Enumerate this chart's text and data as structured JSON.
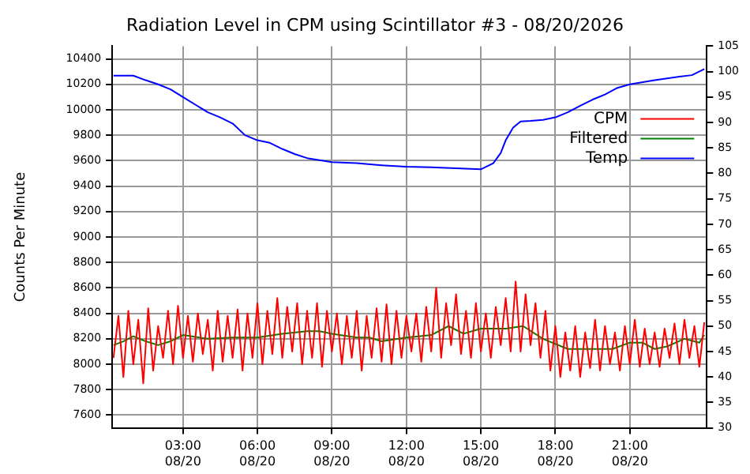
{
  "chart_data": {
    "type": "line",
    "title": "Radiation Level in CPM using Scintillator #3 - 08/20/2026",
    "ylabel": "Counts Per Minute",
    "xlim": [
      "2026-08-20T00:09",
      "2026-08-21T00:06"
    ],
    "ylim": [
      7500,
      10500
    ],
    "y2lim": [
      30,
      105
    ],
    "xticks": [
      {
        "value": "2026-08-20T03:00",
        "label": "03:00\n08/20"
      },
      {
        "value": "2026-08-20T06:00",
        "label": "06:00\n08/20"
      },
      {
        "value": "2026-08-20T09:00",
        "label": "09:00\n08/20"
      },
      {
        "value": "2026-08-20T12:00",
        "label": "12:00\n08/20"
      },
      {
        "value": "2026-08-20T15:00",
        "label": "15:00\n08/20"
      },
      {
        "value": "2026-08-20T18:00",
        "label": "18:00\n08/20"
      },
      {
        "value": "2026-08-20T21:00",
        "label": "21:00\n08/20"
      }
    ],
    "yticks": [
      7600,
      7800,
      8000,
      8200,
      8400,
      8600,
      8800,
      9000,
      9200,
      9400,
      9600,
      9800,
      10000,
      10200,
      10400
    ],
    "y2ticks": [
      30,
      35,
      40,
      45,
      50,
      55,
      60,
      65,
      70,
      75,
      80,
      85,
      90,
      95,
      100,
      105
    ],
    "grid": true,
    "legend": "top right",
    "marker": "none",
    "line_style": "solid",
    "series": [
      {
        "name": "CPM",
        "color": "#ff0000",
        "x": [
          "2026-08-20T00:12",
          "2026-08-20T00:24",
          "2026-08-20T00:36",
          "2026-08-20T00:48",
          "2026-08-20T01:00",
          "2026-08-20T01:12",
          "2026-08-20T01:24",
          "2026-08-20T01:36",
          "2026-08-20T01:48",
          "2026-08-20T02:00",
          "2026-08-20T02:12",
          "2026-08-20T02:24",
          "2026-08-20T02:36",
          "2026-08-20T02:48",
          "2026-08-20T03:00",
          "2026-08-20T03:12",
          "2026-08-20T03:24",
          "2026-08-20T03:36",
          "2026-08-20T03:48",
          "2026-08-20T04:00",
          "2026-08-20T04:12",
          "2026-08-20T04:24",
          "2026-08-20T04:36",
          "2026-08-20T04:48",
          "2026-08-20T05:00",
          "2026-08-20T05:12",
          "2026-08-20T05:24",
          "2026-08-20T05:36",
          "2026-08-20T05:48",
          "2026-08-20T06:00",
          "2026-08-20T06:12",
          "2026-08-20T06:24",
          "2026-08-20T06:36",
          "2026-08-20T06:48",
          "2026-08-20T07:00",
          "2026-08-20T07:12",
          "2026-08-20T07:24",
          "2026-08-20T07:36",
          "2026-08-20T07:48",
          "2026-08-20T08:00",
          "2026-08-20T08:12",
          "2026-08-20T08:24",
          "2026-08-20T08:36",
          "2026-08-20T08:48",
          "2026-08-20T09:00",
          "2026-08-20T09:12",
          "2026-08-20T09:24",
          "2026-08-20T09:36",
          "2026-08-20T09:48",
          "2026-08-20T10:00",
          "2026-08-20T10:12",
          "2026-08-20T10:24",
          "2026-08-20T10:36",
          "2026-08-20T10:48",
          "2026-08-20T11:00",
          "2026-08-20T11:12",
          "2026-08-20T11:24",
          "2026-08-20T11:36",
          "2026-08-20T11:48",
          "2026-08-20T12:00",
          "2026-08-20T12:12",
          "2026-08-20T12:24",
          "2026-08-20T12:36",
          "2026-08-20T12:48",
          "2026-08-20T13:00",
          "2026-08-20T13:12",
          "2026-08-20T13:24",
          "2026-08-20T13:36",
          "2026-08-20T13:48",
          "2026-08-20T14:00",
          "2026-08-20T14:12",
          "2026-08-20T14:24",
          "2026-08-20T14:36",
          "2026-08-20T14:48",
          "2026-08-20T15:00",
          "2026-08-20T15:12",
          "2026-08-20T15:24",
          "2026-08-20T15:36",
          "2026-08-20T15:48",
          "2026-08-20T16:00",
          "2026-08-20T16:12",
          "2026-08-20T16:24",
          "2026-08-20T16:36",
          "2026-08-20T16:48",
          "2026-08-20T17:00",
          "2026-08-20T17:12",
          "2026-08-20T17:24",
          "2026-08-20T17:36",
          "2026-08-20T17:48",
          "2026-08-20T18:00",
          "2026-08-20T18:12",
          "2026-08-20T18:24",
          "2026-08-20T18:36",
          "2026-08-20T18:48",
          "2026-08-20T19:00",
          "2026-08-20T19:12",
          "2026-08-20T19:24",
          "2026-08-20T19:36",
          "2026-08-20T19:48",
          "2026-08-20T20:00",
          "2026-08-20T20:12",
          "2026-08-20T20:24",
          "2026-08-20T20:36",
          "2026-08-20T20:48",
          "2026-08-20T21:00",
          "2026-08-20T21:12",
          "2026-08-20T21:24",
          "2026-08-20T21:36",
          "2026-08-20T21:48",
          "2026-08-20T22:00",
          "2026-08-20T22:12",
          "2026-08-20T22:24",
          "2026-08-20T22:36",
          "2026-08-20T22:48",
          "2026-08-20T23:00",
          "2026-08-20T23:12",
          "2026-08-20T23:24",
          "2026-08-20T23:36",
          "2026-08-20T23:48",
          "2026-08-21T00:00"
        ],
        "values": [
          8050,
          8380,
          7900,
          8420,
          8000,
          8350,
          7850,
          8440,
          7950,
          8300,
          8050,
          8420,
          8000,
          8460,
          8050,
          8380,
          8020,
          8400,
          8080,
          8350,
          7950,
          8420,
          8020,
          8380,
          8050,
          8430,
          7950,
          8400,
          8050,
          8480,
          8000,
          8420,
          8080,
          8520,
          8050,
          8450,
          8100,
          8480,
          8000,
          8420,
          8050,
          8480,
          7980,
          8420,
          8100,
          8400,
          8000,
          8380,
          8050,
          8420,
          7950,
          8380,
          8050,
          8440,
          8020,
          8470,
          8000,
          8420,
          8050,
          8380,
          8100,
          8400,
          8020,
          8450,
          8100,
          8600,
          8050,
          8480,
          8150,
          8550,
          8080,
          8420,
          8050,
          8480,
          8100,
          8400,
          8050,
          8450,
          8150,
          8520,
          8100,
          8650,
          8100,
          8550,
          8150,
          8480,
          8050,
          8420,
          7950,
          8300,
          7900,
          8250,
          7950,
          8300,
          7900,
          8250,
          7970,
          8350,
          7950,
          8300,
          8000,
          8250,
          7950,
          8300,
          8000,
          8350,
          7980,
          8280,
          8000,
          8250,
          7980,
          8280,
          8050,
          8320,
          8000,
          8350,
          8050,
          8300,
          7980,
          8330
        ]
      },
      {
        "name": "Filtered",
        "color": "#008000",
        "x": [
          "2026-08-20T00:12",
          "2026-08-20T00:36",
          "2026-08-20T01:00",
          "2026-08-20T01:30",
          "2026-08-20T02:00",
          "2026-08-20T02:30",
          "2026-08-20T03:00",
          "2026-08-20T04:00",
          "2026-08-20T05:00",
          "2026-08-20T06:00",
          "2026-08-20T07:00",
          "2026-08-20T08:00",
          "2026-08-20T08:30",
          "2026-08-20T09:00",
          "2026-08-20T10:00",
          "2026-08-20T10:30",
          "2026-08-20T11:00",
          "2026-08-20T12:00",
          "2026-08-20T12:30",
          "2026-08-20T13:00",
          "2026-08-20T13:42",
          "2026-08-20T14:18",
          "2026-08-20T15:00",
          "2026-08-20T16:00",
          "2026-08-20T16:42",
          "2026-08-20T17:30",
          "2026-08-20T18:30",
          "2026-08-20T19:30",
          "2026-08-20T20:18",
          "2026-08-20T21:00",
          "2026-08-20T21:30",
          "2026-08-20T22:00",
          "2026-08-20T22:30",
          "2026-08-20T23:12",
          "2026-08-20T23:48",
          "2026-08-21T00:00"
        ],
        "values": [
          8150,
          8180,
          8220,
          8180,
          8150,
          8180,
          8230,
          8200,
          8210,
          8210,
          8240,
          8260,
          8260,
          8240,
          8210,
          8210,
          8180,
          8210,
          8220,
          8230,
          8300,
          8240,
          8280,
          8280,
          8300,
          8200,
          8120,
          8120,
          8120,
          8170,
          8170,
          8120,
          8140,
          8200,
          8170,
          8230
        ]
      },
      {
        "name": "Temp",
        "color": "#0000ff",
        "axis": "y2",
        "x": [
          "2026-08-20T00:12",
          "2026-08-20T01:00",
          "2026-08-20T01:30",
          "2026-08-20T02:00",
          "2026-08-20T02:30",
          "2026-08-20T03:00",
          "2026-08-20T03:30",
          "2026-08-20T04:00",
          "2026-08-20T04:30",
          "2026-08-20T05:00",
          "2026-08-20T05:30",
          "2026-08-20T06:00",
          "2026-08-20T06:30",
          "2026-08-20T07:00",
          "2026-08-20T07:30",
          "2026-08-20T08:00",
          "2026-08-20T09:00",
          "2026-08-20T10:00",
          "2026-08-20T11:00",
          "2026-08-20T12:00",
          "2026-08-20T13:00",
          "2026-08-20T14:00",
          "2026-08-20T15:00",
          "2026-08-20T15:30",
          "2026-08-20T15:48",
          "2026-08-20T16:00",
          "2026-08-20T16:18",
          "2026-08-20T16:36",
          "2026-08-20T17:00",
          "2026-08-20T17:30",
          "2026-08-20T18:00",
          "2026-08-20T18:30",
          "2026-08-20T19:00",
          "2026-08-20T19:30",
          "2026-08-20T20:00",
          "2026-08-20T20:30",
          "2026-08-20T21:00",
          "2026-08-20T22:00",
          "2026-08-20T23:00",
          "2026-08-20T23:30",
          "2026-08-21T00:00"
        ],
        "values": [
          99.2,
          99.2,
          98.3,
          97.5,
          96.5,
          95.0,
          93.5,
          92.0,
          91.0,
          89.8,
          87.5,
          86.5,
          86.0,
          84.8,
          83.8,
          83.0,
          82.2,
          82.0,
          81.6,
          81.3,
          81.2,
          81.0,
          80.8,
          82.0,
          84.0,
          86.5,
          89.0,
          90.2,
          90.3,
          90.5,
          91.0,
          92.0,
          93.3,
          94.5,
          95.5,
          96.8,
          97.5,
          98.3,
          99.0,
          99.3,
          100.5
        ]
      }
    ]
  }
}
